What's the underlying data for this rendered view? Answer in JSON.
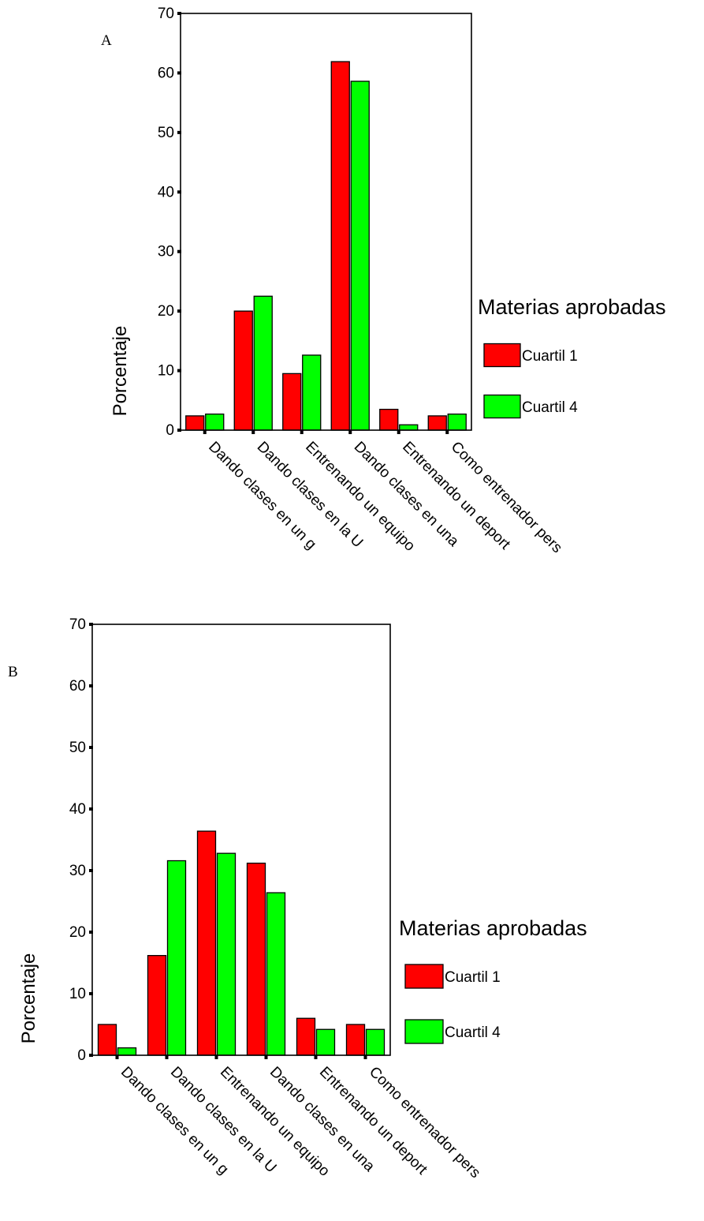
{
  "chart_data": [
    {
      "type": "bar",
      "panel_label": "A",
      "categories": [
        "Dando clases en un g",
        "Dando clases en la U",
        "Entrenando un equipo",
        "Dando clases en una",
        "Entrenando un deport",
        "Como entrenador pers"
      ],
      "series": [
        {
          "name": "Cuartil 1",
          "values": [
            2.4,
            20.0,
            9.5,
            61.9,
            3.5,
            2.4
          ]
        },
        {
          "name": "Cuartil 4",
          "values": [
            2.7,
            22.5,
            12.6,
            58.6,
            0.9,
            2.7
          ]
        }
      ],
      "yticks": [
        0,
        10,
        20,
        30,
        40,
        50,
        60,
        70
      ],
      "ylim": [
        0,
        70
      ],
      "ylabel": "Porcentaje",
      "xlabel": "",
      "legend_title": "Materias aprobadas",
      "legend_position": "right",
      "grid": false
    },
    {
      "type": "bar",
      "panel_label": "B",
      "categories": [
        "Dando clases en un g",
        "Dando clases en la U",
        "Entrenando un equipo",
        "Dando clases en una",
        "Entrenando un deport",
        "Como entrenador pers"
      ],
      "series": [
        {
          "name": "Cuartil 1",
          "values": [
            5.0,
            16.2,
            36.4,
            31.2,
            6.0,
            5.0
          ]
        },
        {
          "name": "Cuartil 4",
          "values": [
            1.2,
            31.6,
            32.8,
            26.4,
            4.2,
            4.2
          ]
        }
      ],
      "yticks": [
        0,
        10,
        20,
        30,
        40,
        50,
        60,
        70
      ],
      "ylim": [
        0,
        70
      ],
      "ylabel": "Porcentaje",
      "xlabel": "",
      "legend_title": "Materias aprobadas",
      "legend_position": "right",
      "grid": false
    }
  ],
  "colors": {
    "series": [
      "#ff0000",
      "#00ff00"
    ],
    "axis": "#000000"
  }
}
